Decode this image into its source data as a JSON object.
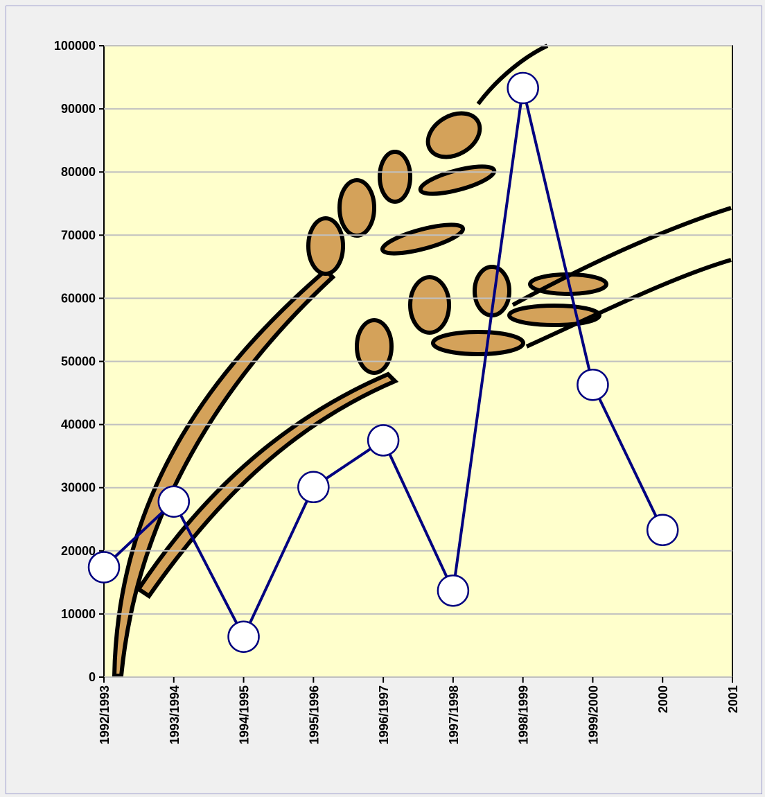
{
  "chart_data": {
    "type": "line",
    "categories": [
      "1992/1993",
      "1993/1994",
      "1994/1995",
      "1995/1996",
      "1996/1997",
      "1997/1998",
      "1998/1999",
      "1999/2000",
      "2000",
      "2001"
    ],
    "series": [
      {
        "color": "#000080",
        "values": [
          17400,
          27800,
          6400,
          30100,
          37500,
          13700,
          93300,
          46300,
          23300,
          null
        ]
      }
    ],
    "ylim": [
      0,
      100000
    ],
    "yticks": [
      0,
      10000,
      20000,
      30000,
      40000,
      50000,
      60000,
      70000,
      80000,
      90000,
      100000
    ],
    "grid": true
  }
}
